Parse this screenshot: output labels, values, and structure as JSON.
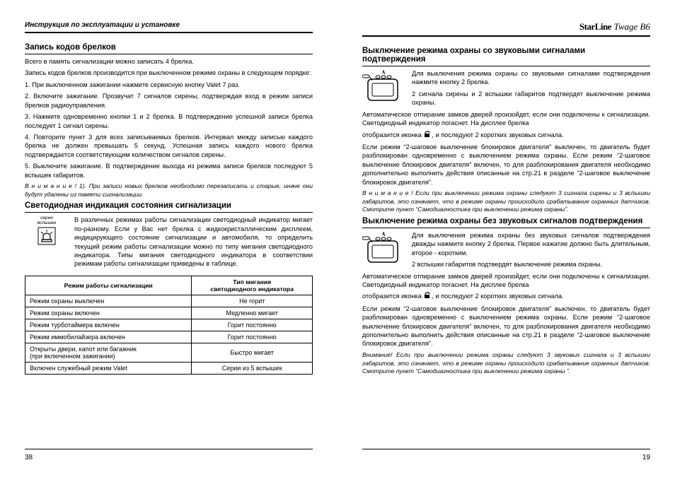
{
  "header": {
    "left": "Инструкция по эксплуатации и установке",
    "brand": "StarLine",
    "model": "Twage B6"
  },
  "leftCol": {
    "h1": "Запись кодов брелков",
    "p1": "Всего в память сигнализации можно записать 4 брелка.",
    "p2": "Запись кодов брелков производится при выключенном режиме охраны в следующем порядке:",
    "p3": "1. При выключенном зажигании нажмите сервисную кнопку Valet 7 раз.",
    "p4": "2. Включите зажигание. Прозвучат 7 сигналов сирены, подтверждая вход в режим записи брелков радиоуправления.",
    "p5": "3. Нажмите одновременно кнопки 1 и 2 брелка. В подтверждение успешной записи брелка последует 1 сигнал сирены.",
    "p6": "4. Повторите пункт 3 для всех записываемых брелков. Интервал между записью каждого брелка не должен превышать 5 секунд. Успешная запись каждого нового брелка подтверждается соответствующим количеством сигналов сирены.",
    "p7": "5. Выключите зажигание. В подтверждение выхода из режима записи брелков последуют 5 вспышек габаритов.",
    "note1": "В н и м а н и е !  1). При записи новых брелков необходимо перезаписать и старые, иначе они будут удалены из памяти сигнализации.",
    "h2": "Светодиодная индикация состояния сигнализации",
    "ledLabel": "серии\nвспышек",
    "p8": "В различных режимах работы сигнализации светодиодный индикатор мигает по-разному. Если у Вас нет брелка с жидкокристаллическим дисплеем, индицирующего состояние сигнализации и автомобиля, то определить текущий режим работы сигнализации можно по типу мигания светодиодного индикатора. Типы мигания светодиодного индикатора в соответствии режимам работы сигнализации приведены в таблице.",
    "table": {
      "th1": "Режим работы сигнализации",
      "th2": "Тип мигания\nсветодиодного индикатора",
      "rows": [
        [
          "Режим охраны выключен",
          "Не горит"
        ],
        [
          "Режим охраны включен",
          "Медленно мигает"
        ],
        [
          "Режим турботаймера включен",
          "Горит постоянно"
        ],
        [
          "Режим иммобилайзера включен",
          "Горит постоянно"
        ],
        [
          "Открыты двери, капот или багажник\n(при включенном зажигании)",
          "Быстро мигает"
        ],
        [
          "Включен служебный режим Valet",
          "Серии из 5 вспышек"
        ]
      ]
    },
    "pageNum": "38"
  },
  "rightCol": {
    "h1": "Выключение режима охраны со звуковыми сигналами подтверждения",
    "p1": "Для выключения режима охраны со звуковыми сигналами подтверждения нажмите кнопку 2 брелка.",
    "p2": "2 сигнала сирены и 2 вспышки габаритов подтвердят выключение режима охраны.",
    "p3a": "Автоматическое отпирание замков дверей произойдет, если они подключены к сигнализации. Светодиодный индикатор погаснет. На дисплее брелка",
    "p3b": "отобразится иконка",
    "p3c": ", и последуют 2 коротких звуковых сигнала.",
    "p4": "Если режим “2-шаговое выключение блокировок двигателя” выключен, то двигатель будет разблокирован одновременно с выключением режима охраны. Если режим “2-шаговое выключение блокировок двигателя” включен, то для разблокирования двигателя необходимо дополнительно выполнить действия описанные на стр.21 в разделе “2-шаговое выключение блокировок двигателя”.",
    "note1": "В н и м а н и е !  Если при выключении режима охраны следуют 3 сигнала сирены и 3 вспышки габаритов, это означает, что в режиме охраны происходило срабатывание охранных датчиков. Смотрите пункт “Самодиагностика при выключении режима охраны”.",
    "h2": "Выключение режима охраны без звуковых сигналов подтверждения",
    "p5": "Для выключения режима охраны без звуковых сигналов подтверждения дважды нажмите кнопку 2 брелка. Первое нажатие должно быть длительным, второе - коротким.",
    "p6": "2 вспышки габаритов подтвердят выключение режима охраны.",
    "p7a": "Автоматическое отпирание замков дверей произойдет, если они подключены к сигнализации. Светодиодный индикатор погаснет. На дисплее брелка",
    "p7b": "отобразится иконка",
    "p7c": ", и последуют 2 коротких звуковых сигнала.",
    "p8": "Если режим “2-шаговое выключение блокировок двигателя” выключен, то двигатель будет разблокирован одновременно с выключением режима охраны. Если режим “2-шаговое выключение блокировок двигателя” включен, то для разблокирования двигателя необходимо дополнительно выполнить действия описанные на стр.21 в разделе “2-шаговое выключение блокировок двигателя”.",
    "note2": "Внимание! Если при выключении режима охраны следуют 3 звуковых сигнала и 3 вспышки габаритов, это означает, что в режиме охраны происходило срабатывание охранных датчиков. Смотрите пункт “Самодиагностика при выключении режима охраны ”.",
    "pageNum": "19"
  },
  "colors": {
    "text": "#000000",
    "border": "#000000",
    "bg": "#ffffff"
  }
}
